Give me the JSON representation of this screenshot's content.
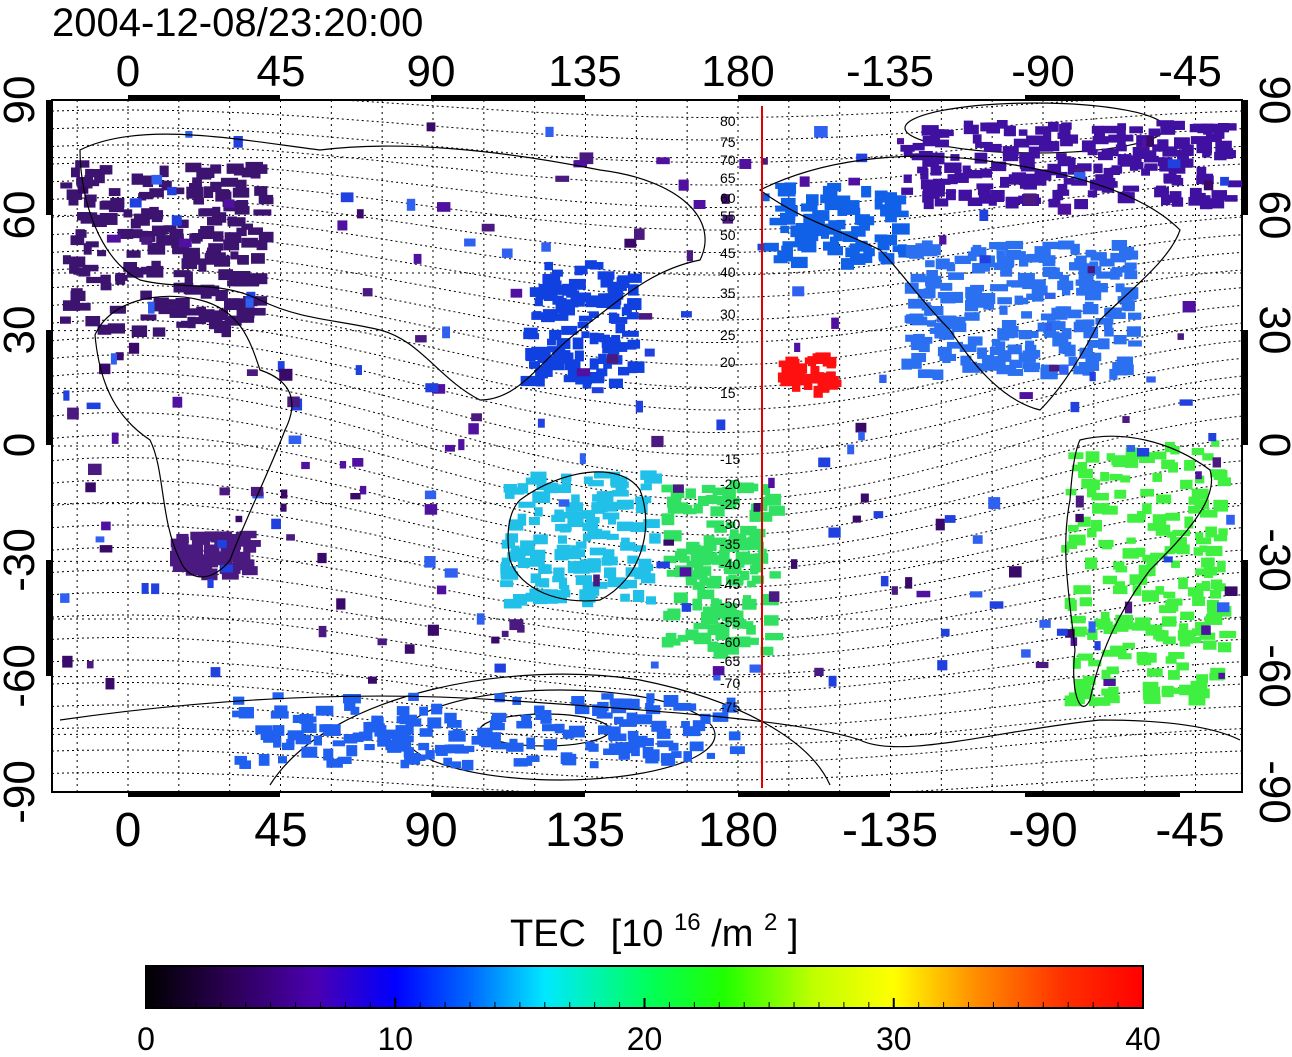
{
  "timestamp": "2004-12-08/23:20:00",
  "map": {
    "top_lon_labels": [
      "0",
      "45",
      "90",
      "135",
      "180",
      "-135",
      "-90",
      "-45"
    ],
    "bottom_lon_labels": [
      "0",
      "45",
      "90",
      "135",
      "180",
      "-135",
      "-90",
      "-45"
    ],
    "left_lat_labels": [
      "90",
      "60",
      "30",
      "0",
      "-30",
      "-60",
      "-90"
    ],
    "right_lat_labels": [
      "90",
      "60",
      "30",
      "0",
      "-30",
      "-60",
      "-90"
    ],
    "marker_line_color": "#e00000",
    "contour_labels": [
      "80",
      "75",
      "70",
      "65",
      "60",
      "55",
      "50",
      "45",
      "40",
      "35",
      "30",
      "25",
      "20",
      "15",
      "-15",
      "-20",
      "-25",
      "-30",
      "-35",
      "-40",
      "-45",
      "-50",
      "-55",
      "-60",
      "-65",
      "-70",
      "-75"
    ]
  },
  "colorbar": {
    "title_main": "TEC",
    "title_unit_prefix": "[10",
    "title_unit_exp": "16",
    "title_unit_mid": "/m",
    "title_unit_exp2": "2",
    "title_unit_suffix": "]",
    "min": 0,
    "max": 40,
    "tick_labels": [
      "0",
      "10",
      "20",
      "30",
      "40"
    ],
    "colors": [
      "#000000",
      "#3a0060",
      "#4b00b0",
      "#0000ff",
      "#0070ff",
      "#00e8ff",
      "#00ff80",
      "#20ff00",
      "#c0ff00",
      "#ffff00",
      "#ff9000",
      "#ff2000",
      "#ff0000"
    ]
  },
  "tec_regions": [
    {
      "name": "europe",
      "color": "#3c1470"
    },
    {
      "name": "africa-south",
      "color": "#4a1a80"
    },
    {
      "name": "east-asia",
      "color": "#1040e0"
    },
    {
      "name": "alaska",
      "color": "#1060e8"
    },
    {
      "name": "north-america",
      "color": "#2a70f0"
    },
    {
      "name": "north-canada",
      "color": "#4010a0"
    },
    {
      "name": "australia",
      "color": "#20c0e8"
    },
    {
      "name": "new-zealand",
      "color": "#30e060"
    },
    {
      "name": "south-america",
      "color": "#40f040"
    },
    {
      "name": "hawaii",
      "color": "#ff1010"
    },
    {
      "name": "antarctica",
      "color": "#2060f0"
    }
  ]
}
